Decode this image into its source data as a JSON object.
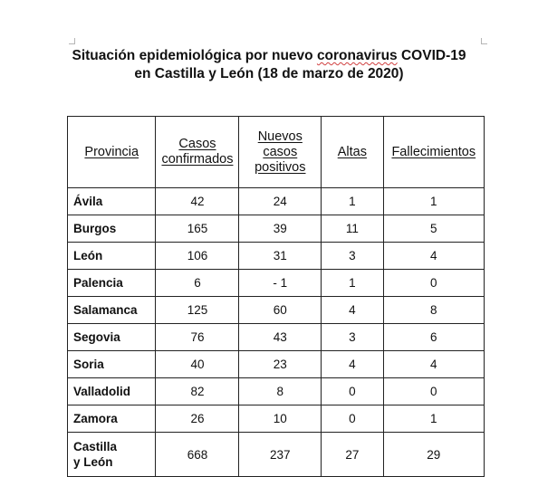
{
  "title": {
    "line1_prefix": "Situación epidemiológica por nuevo ",
    "line1_misspelled": "coronavirus",
    "line1_suffix": " COVID-19",
    "line2": "en Castilla y León (18 de marzo de 2020)"
  },
  "table": {
    "headers": {
      "provincia": "Provincia",
      "casos_line1": "Casos",
      "casos_line2": "confirmados",
      "nuevos_line1": "Nuevos",
      "nuevos_line2": "casos",
      "nuevos_line3": "positivos",
      "altas": "Altas",
      "fallecimientos": "Fallecimientos"
    },
    "rows": [
      {
        "provincia": "Ávila",
        "casos": "42",
        "nuevos": "24",
        "altas": "1",
        "fallecimientos": "1"
      },
      {
        "provincia": "Burgos",
        "casos": "165",
        "nuevos": "39",
        "altas": "11",
        "fallecimientos": "5"
      },
      {
        "provincia": "León",
        "casos": "106",
        "nuevos": "31",
        "altas": "3",
        "fallecimientos": "4"
      },
      {
        "provincia": "Palencia",
        "casos": "6",
        "nuevos": "- 1",
        "altas": "1",
        "fallecimientos": "0"
      },
      {
        "provincia": "Salamanca",
        "casos": "125",
        "nuevos": "60",
        "altas": "4",
        "fallecimientos": "8"
      },
      {
        "provincia": "Segovia",
        "casos": "76",
        "nuevos": "43",
        "altas": "3",
        "fallecimientos": "6"
      },
      {
        "provincia": "Soria",
        "casos": "40",
        "nuevos": "23",
        "altas": "4",
        "fallecimientos": "4"
      },
      {
        "provincia": "Valladolid",
        "casos": "82",
        "nuevos": "8",
        "altas": "0",
        "fallecimientos": "0"
      },
      {
        "provincia": "Zamora",
        "casos": "26",
        "nuevos": "10",
        "altas": "0",
        "fallecimientos": "1"
      }
    ],
    "total": {
      "provincia_line1": "Castilla",
      "provincia_line2": "y León",
      "casos": "668",
      "nuevos": "237",
      "altas": "27",
      "fallecimientos": "29"
    }
  }
}
